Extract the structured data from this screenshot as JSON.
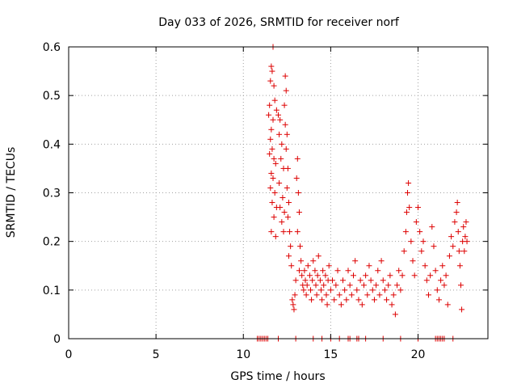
{
  "chart_data": {
    "type": "scatter",
    "title": "Day 033 of 2026, SRMTID for receiver norf",
    "xlabel": "GPS time / hours",
    "ylabel": "SRMTID / TECUs",
    "xlim": [
      0,
      24
    ],
    "ylim": [
      0,
      0.6
    ],
    "xticks": [
      "0",
      "5",
      "10",
      "15",
      "20"
    ],
    "yticks": [
      "0",
      "0.1",
      "0.2",
      "0.3",
      "0.4",
      "0.5",
      "0.6"
    ],
    "xtick_values": [
      0,
      5,
      10,
      15,
      20
    ],
    "ytick_values": [
      0,
      0.1,
      0.2,
      0.3,
      0.4,
      0.5,
      0.6
    ],
    "grid": true,
    "marker": "+",
    "color": "#dd0000",
    "series": [
      {
        "name": "SRMTID",
        "points": [
          [
            11.6,
            0.56
          ],
          [
            11.7,
            0.6
          ],
          [
            11.65,
            0.55
          ],
          [
            11.55,
            0.53
          ],
          [
            11.75,
            0.52
          ],
          [
            11.5,
            0.48
          ],
          [
            11.45,
            0.46
          ],
          [
            11.8,
            0.49
          ],
          [
            11.7,
            0.45
          ],
          [
            11.6,
            0.43
          ],
          [
            11.9,
            0.47
          ],
          [
            11.55,
            0.41
          ],
          [
            11.65,
            0.39
          ],
          [
            11.75,
            0.37
          ],
          [
            11.5,
            0.38
          ],
          [
            11.85,
            0.36
          ],
          [
            11.6,
            0.34
          ],
          [
            11.7,
            0.33
          ],
          [
            11.55,
            0.31
          ],
          [
            11.8,
            0.3
          ],
          [
            11.65,
            0.28
          ],
          [
            11.9,
            0.27
          ],
          [
            11.75,
            0.25
          ],
          [
            11.6,
            0.22
          ],
          [
            11.85,
            0.21
          ],
          [
            12.0,
            0.46
          ],
          [
            12.1,
            0.45
          ],
          [
            12.05,
            0.42
          ],
          [
            12.2,
            0.4
          ],
          [
            12.15,
            0.37
          ],
          [
            12.3,
            0.35
          ],
          [
            12.05,
            0.32
          ],
          [
            12.25,
            0.29
          ],
          [
            12.1,
            0.27
          ],
          [
            12.35,
            0.26
          ],
          [
            12.2,
            0.24
          ],
          [
            12.3,
            0.22
          ],
          [
            12.4,
            0.54
          ],
          [
            12.45,
            0.51
          ],
          [
            12.35,
            0.48
          ],
          [
            12.4,
            0.44
          ],
          [
            12.5,
            0.42
          ],
          [
            12.45,
            0.39
          ],
          [
            12.55,
            0.35
          ],
          [
            12.5,
            0.31
          ],
          [
            12.6,
            0.28
          ],
          [
            12.55,
            0.25
          ],
          [
            12.65,
            0.22
          ],
          [
            12.7,
            0.19
          ],
          [
            12.6,
            0.17
          ],
          [
            12.75,
            0.15
          ],
          [
            12.8,
            0.08
          ],
          [
            12.85,
            0.07
          ],
          [
            12.9,
            0.06
          ],
          [
            12.95,
            0.09
          ],
          [
            13.0,
            0.12
          ],
          [
            13.1,
            0.37
          ],
          [
            13.05,
            0.33
          ],
          [
            13.15,
            0.3
          ],
          [
            13.2,
            0.26
          ],
          [
            13.1,
            0.22
          ],
          [
            13.25,
            0.19
          ],
          [
            13.3,
            0.16
          ],
          [
            13.2,
            0.14
          ],
          [
            13.35,
            0.13
          ],
          [
            13.4,
            0.11
          ],
          [
            13.45,
            0.1
          ],
          [
            13.5,
            0.14
          ],
          [
            13.55,
            0.12
          ],
          [
            13.6,
            0.09
          ],
          [
            13.65,
            0.11
          ],
          [
            13.7,
            0.15
          ],
          [
            13.8,
            0.13
          ],
          [
            13.85,
            0.1
          ],
          [
            13.9,
            0.08
          ],
          [
            13.95,
            0.12
          ],
          [
            14.0,
            0.16
          ],
          [
            14.1,
            0.14
          ],
          [
            14.15,
            0.11
          ],
          [
            14.2,
            0.09
          ],
          [
            14.25,
            0.13
          ],
          [
            14.3,
            0.17
          ],
          [
            14.4,
            0.12
          ],
          [
            14.45,
            0.1
          ],
          [
            14.5,
            0.08
          ],
          [
            14.55,
            0.14
          ],
          [
            14.6,
            0.11
          ],
          [
            14.7,
            0.13
          ],
          [
            14.75,
            0.09
          ],
          [
            14.8,
            0.07
          ],
          [
            14.85,
            0.12
          ],
          [
            14.9,
            0.15
          ],
          [
            15.0,
            0.1
          ],
          [
            15.1,
            0.12
          ],
          [
            15.2,
            0.08
          ],
          [
            15.3,
            0.11
          ],
          [
            15.4,
            0.14
          ],
          [
            15.5,
            0.09
          ],
          [
            15.6,
            0.07
          ],
          [
            15.7,
            0.12
          ],
          [
            15.8,
            0.1
          ],
          [
            15.9,
            0.08
          ],
          [
            16.0,
            0.14
          ],
          [
            16.1,
            0.11
          ],
          [
            16.2,
            0.09
          ],
          [
            16.3,
            0.13
          ],
          [
            16.4,
            0.16
          ],
          [
            16.5,
            0.1
          ],
          [
            16.6,
            0.08
          ],
          [
            16.7,
            0.12
          ],
          [
            16.8,
            0.07
          ],
          [
            16.9,
            0.11
          ],
          [
            17.0,
            0.13
          ],
          [
            17.1,
            0.09
          ],
          [
            17.2,
            0.15
          ],
          [
            17.3,
            0.12
          ],
          [
            17.4,
            0.1
          ],
          [
            17.5,
            0.08
          ],
          [
            17.6,
            0.11
          ],
          [
            17.7,
            0.14
          ],
          [
            17.8,
            0.09
          ],
          [
            17.9,
            0.16
          ],
          [
            18.0,
            0.12
          ],
          [
            18.1,
            0.1
          ],
          [
            18.2,
            0.08
          ],
          [
            18.3,
            0.11
          ],
          [
            18.4,
            0.13
          ],
          [
            18.5,
            0.07
          ],
          [
            18.6,
            0.09
          ],
          [
            18.7,
            0.05
          ],
          [
            18.8,
            0.11
          ],
          [
            18.9,
            0.14
          ],
          [
            19.0,
            0.1
          ],
          [
            19.1,
            0.13
          ],
          [
            19.2,
            0.18
          ],
          [
            19.3,
            0.22
          ],
          [
            19.35,
            0.26
          ],
          [
            19.4,
            0.3
          ],
          [
            19.45,
            0.32
          ],
          [
            19.5,
            0.27
          ],
          [
            19.6,
            0.2
          ],
          [
            19.7,
            0.16
          ],
          [
            19.8,
            0.13
          ],
          [
            19.9,
            0.24
          ],
          [
            20.0,
            0.27
          ],
          [
            20.1,
            0.22
          ],
          [
            20.2,
            0.18
          ],
          [
            20.3,
            0.2
          ],
          [
            20.4,
            0.15
          ],
          [
            20.5,
            0.12
          ],
          [
            20.6,
            0.09
          ],
          [
            20.7,
            0.13
          ],
          [
            20.8,
            0.23
          ],
          [
            20.9,
            0.19
          ],
          [
            21.0,
            0.14
          ],
          [
            21.1,
            0.1
          ],
          [
            21.2,
            0.08
          ],
          [
            21.3,
            0.12
          ],
          [
            21.4,
            0.15
          ],
          [
            21.5,
            0.11
          ],
          [
            21.6,
            0.13
          ],
          [
            21.7,
            0.07
          ],
          [
            21.8,
            0.17
          ],
          [
            21.9,
            0.21
          ],
          [
            22.0,
            0.19
          ],
          [
            22.1,
            0.24
          ],
          [
            22.2,
            0.26
          ],
          [
            22.25,
            0.28
          ],
          [
            22.3,
            0.22
          ],
          [
            22.35,
            0.18
          ],
          [
            22.4,
            0.15
          ],
          [
            22.45,
            0.11
          ],
          [
            22.5,
            0.06
          ],
          [
            22.55,
            0.2
          ],
          [
            22.6,
            0.23
          ],
          [
            22.65,
            0.18
          ],
          [
            22.7,
            0.21
          ],
          [
            22.75,
            0.24
          ],
          [
            22.8,
            0.2
          ],
          [
            10.8,
            0
          ],
          [
            10.9,
            0
          ],
          [
            11.0,
            0
          ],
          [
            11.1,
            0
          ],
          [
            11.2,
            0
          ],
          [
            11.3,
            0
          ],
          [
            11.4,
            0
          ],
          [
            12.0,
            0
          ],
          [
            13.0,
            0
          ],
          [
            14.0,
            0
          ],
          [
            14.5,
            0
          ],
          [
            15.0,
            0
          ],
          [
            15.5,
            0
          ],
          [
            16.0,
            0
          ],
          [
            16.1,
            0
          ],
          [
            16.5,
            0
          ],
          [
            16.6,
            0
          ],
          [
            17.0,
            0
          ],
          [
            18.0,
            0
          ],
          [
            19.0,
            0
          ],
          [
            20.0,
            0
          ],
          [
            21.0,
            0
          ],
          [
            21.1,
            0
          ],
          [
            21.2,
            0
          ],
          [
            21.3,
            0
          ],
          [
            21.4,
            0
          ],
          [
            21.5,
            0
          ],
          [
            22.0,
            0
          ]
        ]
      }
    ]
  }
}
